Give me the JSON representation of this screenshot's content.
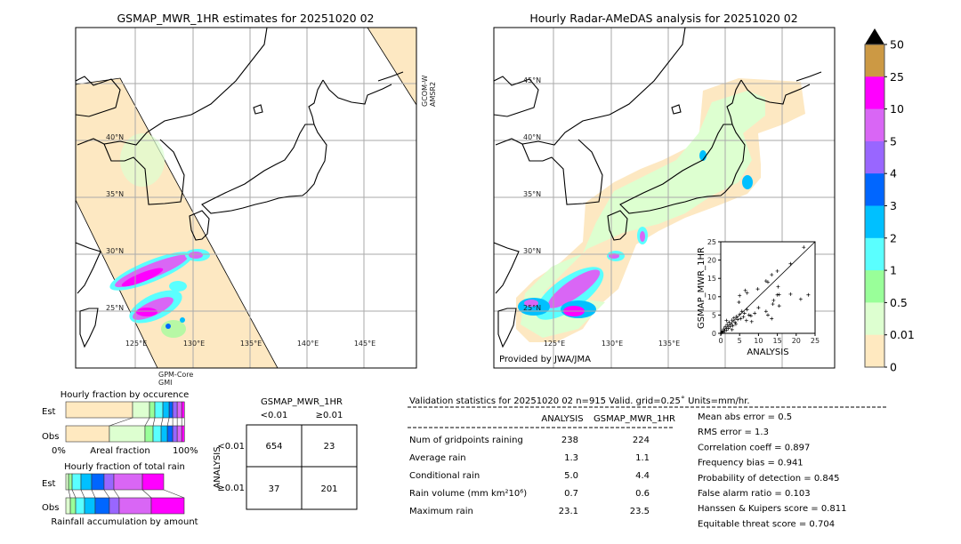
{
  "left_map": {
    "title": "GSMAP_MWR_1HR estimates for 20251020 02",
    "lat_labels": [
      "40°N",
      "35°N",
      "30°N",
      "25°N"
    ],
    "lon_labels": [
      "125°E",
      "130°E",
      "135°E",
      "140°E",
      "145°E"
    ],
    "sensor_right": [
      "GCOM-W",
      "AMSR2"
    ],
    "sensor_bottom": [
      "GPM-Core",
      "GMI"
    ]
  },
  "right_map": {
    "title": "Hourly Radar-AMeDAS analysis for 20251020 02",
    "lat_labels": [
      "45°N",
      "40°N",
      "35°N",
      "30°N",
      "25°N"
    ],
    "lon_labels": [
      "125°E",
      "130°E",
      "135°E"
    ],
    "credit": "Provided by JWA/JMA"
  },
  "colorbar": {
    "labels": [
      "50",
      "25",
      "10",
      "5",
      "4",
      "3",
      "2",
      "1",
      "0.5",
      "0.01",
      "0"
    ],
    "colors": [
      "#cc9944",
      "#ff00ff",
      "#d966f5",
      "#9966ff",
      "#0066ff",
      "#00c0ff",
      "#5affff",
      "#99ff99",
      "#ddffd0",
      "#ffe9c0"
    ],
    "extend_color": "#000000"
  },
  "chart_data": [
    {
      "type": "scatter",
      "xlabel": "ANALYSIS",
      "ylabel": "GSMAP_MWR_1HR",
      "xlim": [
        0,
        25
      ],
      "ylim": [
        0,
        25
      ],
      "xticks": [
        "0",
        "5",
        "10",
        "15",
        "20",
        "25"
      ],
      "yticks": [
        "0",
        "5",
        "10",
        "15",
        "20",
        "25"
      ],
      "diagonal": true,
      "points": [
        [
          0.2,
          0.1
        ],
        [
          0.4,
          0.6
        ],
        [
          0.6,
          0.3
        ],
        [
          0.8,
          1.2
        ],
        [
          1,
          0.5
        ],
        [
          1.2,
          1.8
        ],
        [
          1.5,
          0.9
        ],
        [
          1.7,
          2.4
        ],
        [
          2,
          1.3
        ],
        [
          2.2,
          3
        ],
        [
          2.5,
          1.8
        ],
        [
          2.8,
          2.5
        ],
        [
          3,
          3.6
        ],
        [
          3.2,
          2.1
        ],
        [
          3.5,
          4.2
        ],
        [
          3.8,
          3
        ],
        [
          4,
          2.5
        ],
        [
          4.2,
          4.6
        ],
        [
          4.5,
          3.8
        ],
        [
          5,
          5.2
        ],
        [
          5.3,
          4
        ],
        [
          5.6,
          6
        ],
        [
          6,
          4.5
        ],
        [
          6.3,
          5.5
        ],
        [
          6.8,
          3.5
        ],
        [
          7,
          6.5
        ],
        [
          7.5,
          5
        ],
        [
          8,
          4.8
        ],
        [
          8.2,
          3.2
        ],
        [
          4.8,
          8.5
        ],
        [
          5,
          10.3
        ],
        [
          6.5,
          11.7
        ],
        [
          7,
          11
        ],
        [
          9.8,
          12.1
        ],
        [
          12,
          14.3
        ],
        [
          12.5,
          14
        ],
        [
          13.5,
          16
        ],
        [
          15,
          17
        ],
        [
          15.2,
          12.7
        ],
        [
          15,
          10.5
        ],
        [
          15.5,
          10.6
        ],
        [
          14,
          9
        ],
        [
          13.8,
          8
        ],
        [
          15.5,
          7.5
        ],
        [
          12.5,
          5
        ],
        [
          12,
          6
        ],
        [
          13.5,
          4
        ],
        [
          18.5,
          10.7
        ],
        [
          21.2,
          9.3
        ],
        [
          23.2,
          10.5
        ],
        [
          18.5,
          19
        ],
        [
          22,
          23.5
        ],
        [
          10,
          7
        ],
        [
          9,
          5.5
        ],
        [
          3,
          1
        ],
        [
          1.5,
          3.5
        ]
      ]
    },
    {
      "type": "bar",
      "title": "Hourly fraction by occurence",
      "xlabel": "Areal fraction",
      "x_tick_labels": [
        "0%",
        "100%"
      ],
      "categories": [
        "Est",
        "Obs"
      ],
      "bins": [
        "0-0.01",
        "0.01-0.5",
        "0.5-1",
        "1-2",
        "2-3",
        "3-4",
        "4-5",
        "5-10",
        "10-25"
      ],
      "series": [
        {
          "name": "Est",
          "values": [
            56.4,
            14.3,
            4.5,
            6.8,
            5.3,
            3.0,
            3.8,
            3.8,
            2.3
          ]
        },
        {
          "name": "Obs",
          "values": [
            36.8,
            30.1,
            6.8,
            6.8,
            5.3,
            4.5,
            3.8,
            3.8,
            2.3
          ]
        }
      ]
    },
    {
      "type": "bar",
      "title": "Hourly fraction of total rain",
      "xlabel": "Rainfall accumulation by amount",
      "categories": [
        "Est",
        "Obs"
      ],
      "bins": [
        "0.01-0.5",
        "0.5-1",
        "1-2",
        "2-3",
        "3-4",
        "4-5",
        "5-10",
        "10-25"
      ],
      "series": [
        {
          "name": "Est",
          "values": [
            2.3,
            3.0,
            7.5,
            9.0,
            10.5,
            8.3,
            24.1,
            18.0
          ]
        },
        {
          "name": "Obs",
          "values": [
            3.8,
            4.5,
            7.5,
            9.0,
            12.0,
            8.3,
            27.1,
            27.8
          ]
        }
      ]
    }
  ],
  "contingency": {
    "col_title": "GSMAP_MWR_1HR",
    "col_labels": [
      "<0.01",
      "≥0.01"
    ],
    "row_title": "ANALYSIS",
    "row_labels": [
      "<0.01",
      "≥0.01"
    ],
    "cells": [
      [
        "654",
        "23"
      ],
      [
        "37",
        "201"
      ]
    ]
  },
  "stats": {
    "header": "Validation statistics for 20251020 02  n=915 Valid. grid=0.25˚ Units=mm/hr.",
    "columns": [
      "ANALYSIS",
      "GSMAP_MWR_1HR"
    ],
    "rows": [
      {
        "label": "Num of gridpoints raining",
        "analysis": "238",
        "gsmap": "224"
      },
      {
        "label": "Average rain",
        "analysis": "1.3",
        "gsmap": "1.1"
      },
      {
        "label": "Conditional rain",
        "analysis": "5.0",
        "gsmap": "4.4"
      },
      {
        "label": "Rain volume (mm km²10⁶)",
        "analysis": "0.7",
        "gsmap": "0.6"
      },
      {
        "label": "Maximum rain",
        "analysis": "23.1",
        "gsmap": "23.5"
      }
    ],
    "scores": [
      "Mean abs error =    0.5",
      "RMS error =    1.3",
      "Correlation coeff =  0.897",
      "Frequency bias =  0.941",
      "Probability of detection =  0.845",
      "False alarm ratio =  0.103",
      "Hanssen & Kuipers score =  0.811",
      "Equitable threat score =  0.704"
    ]
  }
}
